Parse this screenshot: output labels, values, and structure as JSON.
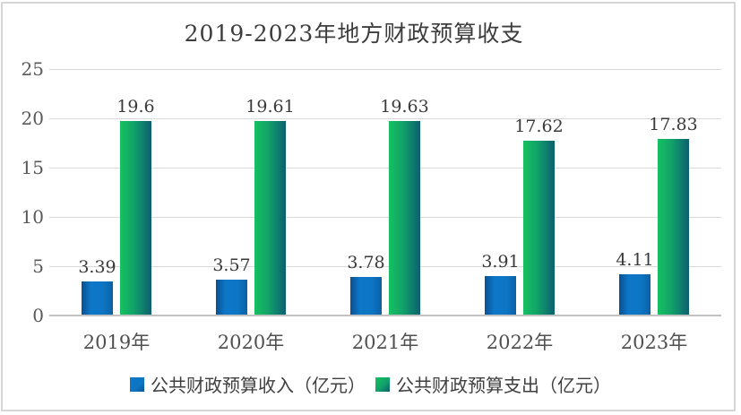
{
  "chart_data": {
    "type": "bar",
    "title": "2019-2023年地方财政预算收支",
    "categories": [
      "2019年",
      "2020年",
      "2021年",
      "2022年",
      "2023年"
    ],
    "series": [
      {
        "name": "公共财政预算收入（亿元）",
        "values": [
          3.39,
          3.57,
          3.78,
          3.91,
          4.11
        ]
      },
      {
        "name": "公共财政预算支出（亿元）",
        "values": [
          19.6,
          19.61,
          19.63,
          17.62,
          17.83
        ]
      }
    ],
    "xlabel": "",
    "ylabel": "",
    "ylim": [
      0,
      25
    ],
    "yticks": [
      0,
      5,
      10,
      15,
      20,
      25
    ],
    "grid": true,
    "legend_position": "bottom"
  },
  "colors": {
    "income_bar_main": "#0d77c8",
    "income_bar_dark": "#0a5091",
    "expenditure_bar_green": "#15c161",
    "expenditure_bar_teal": "#0c5f71",
    "gridline": "#d9d9d9",
    "axis_line": "#c3c3c3",
    "tick_label": "#595959",
    "value_label": "#3a3a3a",
    "title_text": "#3d3d3d",
    "background": "#ffffff",
    "frame_border": "#d6d6d6"
  }
}
